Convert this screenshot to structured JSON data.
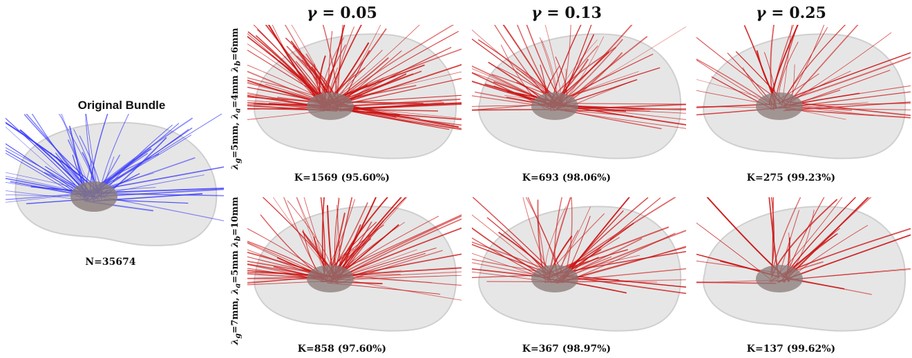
{
  "original": {
    "title": "Original Bundle",
    "count": "N=35674",
    "fiber_color": "#1a1aff"
  },
  "columns": [
    {
      "symbol": "γ",
      "eq": "= 0.05"
    },
    {
      "symbol": "γ",
      "eq": "= 0.13"
    },
    {
      "symbol": "γ",
      "eq": "= 0.25"
    }
  ],
  "rows": [
    {
      "label": "λg=5mm, λa=4mm λb=6mm",
      "label_parts": {
        "g": "5",
        "a": "4",
        "b": "6"
      },
      "captions": [
        "K=1569 (95.60%)",
        "K=693 (98.06%)",
        "K=275 (99.23%)"
      ]
    },
    {
      "label": "λg=7mm, λa=5mm λb=10mm",
      "label_parts": {
        "g": "7",
        "a": "5",
        "b": "10"
      },
      "captions": [
        "K=858 (97.60%)",
        "K=367 (98.97%)",
        "K=137 (99.62%)"
      ]
    }
  ],
  "colors": {
    "brain_fill": "#e6e6e6",
    "fiber_red": "#cc1111",
    "thalamus": "#8a7a78"
  }
}
